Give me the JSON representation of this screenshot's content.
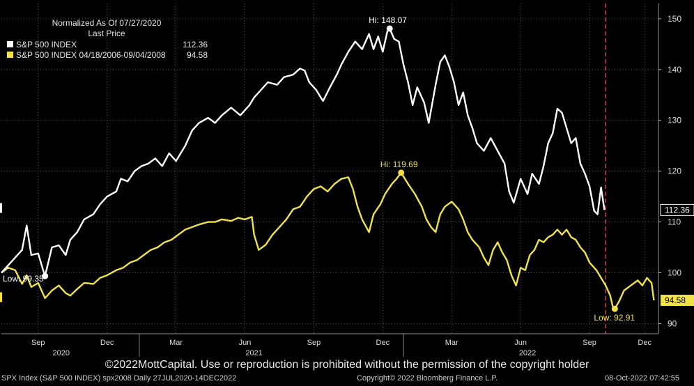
{
  "legend": {
    "header_line1": "Normalized As Of 07/27/2020",
    "header_line2": "Last Price",
    "items": [
      {
        "name": "S&P 500 INDEX",
        "value": "112.36",
        "color": "#ffffff"
      },
      {
        "name": "S&P 500 INDEX 04/18/2006-09/04/2008",
        "value": "94.58",
        "color": "#f2e24a"
      }
    ]
  },
  "copyright": "©2022MottCapital. Use or reproduction is prohibited without the permission of the copyright holder",
  "footer": {
    "left": "SPX Index (S&P 500 INDEX) spx2008  Daily 27JUL2020-14DEC2022",
    "center": "Copyright© 2022 Bloomberg Finance L.P.",
    "right": "08-Oct-2022 07:42:55"
  },
  "chart_data": {
    "type": "line",
    "ylim": [
      88,
      153
    ],
    "yticks": [
      90,
      100,
      110,
      120,
      130,
      140,
      150
    ],
    "xlim": [
      0,
      28.6
    ],
    "month_ticks": [
      {
        "label": "Sep",
        "pos": 1.6
      },
      {
        "label": "Dec",
        "pos": 4.6
      },
      {
        "label": "Mar",
        "pos": 7.6
      },
      {
        "label": "Jun",
        "pos": 10.6
      },
      {
        "label": "Sep",
        "pos": 13.6
      },
      {
        "label": "Dec",
        "pos": 16.6
      },
      {
        "label": "Mar",
        "pos": 19.6
      },
      {
        "label": "Jun",
        "pos": 22.6
      },
      {
        "label": "Sep",
        "pos": 25.6
      },
      {
        "label": "Dec",
        "pos": 28.0
      }
    ],
    "year_labels": [
      {
        "label": "2020",
        "pos": 2.6
      },
      {
        "label": "2021",
        "pos": 11.0
      },
      {
        "label": "2022",
        "pos": 22.9
      }
    ],
    "today_pos": 26.3,
    "series": [
      {
        "name": "S&P 500 INDEX",
        "color": "#ffffff",
        "last_value": "112.36",
        "points": [
          [
            0.0,
            100.0
          ],
          [
            0.5,
            102.5
          ],
          [
            0.9,
            104.5
          ],
          [
            1.1,
            109.3
          ],
          [
            1.3,
            103.5
          ],
          [
            1.6,
            103.8
          ],
          [
            1.8,
            100.8
          ],
          [
            1.9,
            99.35
          ],
          [
            2.2,
            105.0
          ],
          [
            2.5,
            105.4
          ],
          [
            2.8,
            103.5
          ],
          [
            3.0,
            106.5
          ],
          [
            3.3,
            108.0
          ],
          [
            3.6,
            110.5
          ],
          [
            4.0,
            111.5
          ],
          [
            4.3,
            113.5
          ],
          [
            4.6,
            115.0
          ],
          [
            5.0,
            116.0
          ],
          [
            5.2,
            118.5
          ],
          [
            5.5,
            118.0
          ],
          [
            5.8,
            120.0
          ],
          [
            6.1,
            121.0
          ],
          [
            6.4,
            121.5
          ],
          [
            6.7,
            122.5
          ],
          [
            7.0,
            121.0
          ],
          [
            7.3,
            123.5
          ],
          [
            7.6,
            122.0
          ],
          [
            8.0,
            125.0
          ],
          [
            8.3,
            128.0
          ],
          [
            8.6,
            129.5
          ],
          [
            9.0,
            130.5
          ],
          [
            9.3,
            129.5
          ],
          [
            9.6,
            131.0
          ],
          [
            10.0,
            132.5
          ],
          [
            10.4,
            131.0
          ],
          [
            10.8,
            133.0
          ],
          [
            11.0,
            134.5
          ],
          [
            11.3,
            136.0
          ],
          [
            11.6,
            137.5
          ],
          [
            12.0,
            137.0
          ],
          [
            12.3,
            138.5
          ],
          [
            12.7,
            139.0
          ],
          [
            13.0,
            140.2
          ],
          [
            13.2,
            139.8
          ],
          [
            13.4,
            137.5
          ],
          [
            13.7,
            136.0
          ],
          [
            14.0,
            133.8
          ],
          [
            14.3,
            136.5
          ],
          [
            14.6,
            139.0
          ],
          [
            14.8,
            141.0
          ],
          [
            15.1,
            143.5
          ],
          [
            15.4,
            145.5
          ],
          [
            15.7,
            144.0
          ],
          [
            16.0,
            147.0
          ],
          [
            16.2,
            144.0
          ],
          [
            16.4,
            146.5
          ],
          [
            16.6,
            143.5
          ],
          [
            16.8,
            147.5
          ],
          [
            16.9,
            148.07
          ],
          [
            17.1,
            146.0
          ],
          [
            17.3,
            145.5
          ],
          [
            17.5,
            141.0
          ],
          [
            17.7,
            137.5
          ],
          [
            17.9,
            133.0
          ],
          [
            18.1,
            136.5
          ],
          [
            18.4,
            133.5
          ],
          [
            18.6,
            129.5
          ],
          [
            18.9,
            137.0
          ],
          [
            19.1,
            141.5
          ],
          [
            19.3,
            142.8
          ],
          [
            19.5,
            140.5
          ],
          [
            19.7,
            137.5
          ],
          [
            19.9,
            133.0
          ],
          [
            20.1,
            135.5
          ],
          [
            20.3,
            131.0
          ],
          [
            20.5,
            128.5
          ],
          [
            20.7,
            125.5
          ],
          [
            21.0,
            124.0
          ],
          [
            21.3,
            126.5
          ],
          [
            21.6,
            124.0
          ],
          [
            21.9,
            121.5
          ],
          [
            22.1,
            116.0
          ],
          [
            22.3,
            113.8
          ],
          [
            22.6,
            118.5
          ],
          [
            22.9,
            115.5
          ],
          [
            23.1,
            119.5
          ],
          [
            23.4,
            117.5
          ],
          [
            23.6,
            121.0
          ],
          [
            23.8,
            125.5
          ],
          [
            24.0,
            127.5
          ],
          [
            24.2,
            132.3
          ],
          [
            24.4,
            131.5
          ],
          [
            24.6,
            128.5
          ],
          [
            24.8,
            125.5
          ],
          [
            25.0,
            126.5
          ],
          [
            25.2,
            121.5
          ],
          [
            25.4,
            119.5
          ],
          [
            25.6,
            117.0
          ],
          [
            25.8,
            112.2
          ],
          [
            25.95,
            111.5
          ],
          [
            26.1,
            116.8
          ],
          [
            26.25,
            112.36
          ]
        ],
        "high": {
          "label": "Hi: 148.07",
          "x": 16.9,
          "y": 148.07
        },
        "low": {
          "label": "Low: 99.35",
          "x": 1.9,
          "y": 99.35
        }
      },
      {
        "name": "S&P 500 INDEX 04/18/2006-09/04/2008",
        "color": "#f2e24a",
        "last_value": "94.58",
        "points": [
          [
            0.0,
            100.0
          ],
          [
            0.3,
            101.0
          ],
          [
            0.6,
            100.5
          ],
          [
            0.9,
            97.8
          ],
          [
            1.1,
            99.5
          ],
          [
            1.3,
            97.2
          ],
          [
            1.6,
            98.0
          ],
          [
            1.9,
            95.0
          ],
          [
            2.2,
            96.5
          ],
          [
            2.5,
            97.5
          ],
          [
            2.8,
            96.0
          ],
          [
            3.0,
            95.5
          ],
          [
            3.3,
            96.8
          ],
          [
            3.6,
            98.0
          ],
          [
            4.0,
            97.8
          ],
          [
            4.3,
            99.0
          ],
          [
            4.6,
            99.5
          ],
          [
            5.0,
            100.5
          ],
          [
            5.3,
            101.0
          ],
          [
            5.6,
            102.0
          ],
          [
            5.9,
            102.5
          ],
          [
            6.2,
            103.5
          ],
          [
            6.5,
            104.5
          ],
          [
            6.8,
            105.0
          ],
          [
            7.1,
            106.0
          ],
          [
            7.4,
            106.5
          ],
          [
            7.7,
            107.5
          ],
          [
            8.0,
            108.5
          ],
          [
            8.3,
            109.0
          ],
          [
            8.6,
            109.5
          ],
          [
            9.0,
            110.0
          ],
          [
            9.3,
            110.0
          ],
          [
            9.6,
            110.5
          ],
          [
            10.0,
            110.2
          ],
          [
            10.3,
            110.8
          ],
          [
            10.6,
            110.5
          ],
          [
            10.9,
            111.0
          ],
          [
            11.0,
            107.5
          ],
          [
            11.2,
            104.5
          ],
          [
            11.5,
            105.5
          ],
          [
            11.8,
            107.5
          ],
          [
            12.1,
            109.0
          ],
          [
            12.4,
            110.5
          ],
          [
            12.7,
            112.5
          ],
          [
            13.0,
            113.0
          ],
          [
            13.3,
            115.0
          ],
          [
            13.6,
            116.5
          ],
          [
            13.9,
            117.0
          ],
          [
            14.2,
            116.0
          ],
          [
            14.5,
            117.5
          ],
          [
            14.8,
            118.5
          ],
          [
            15.1,
            118.8
          ],
          [
            15.3,
            116.5
          ],
          [
            15.5,
            113.0
          ],
          [
            15.7,
            110.5
          ],
          [
            16.0,
            108.0
          ],
          [
            16.2,
            111.5
          ],
          [
            16.5,
            113.5
          ],
          [
            16.7,
            115.5
          ],
          [
            17.0,
            117.5
          ],
          [
            17.2,
            118.5
          ],
          [
            17.4,
            119.69
          ],
          [
            17.7,
            117.5
          ],
          [
            18.0,
            115.5
          ],
          [
            18.3,
            113.0
          ],
          [
            18.5,
            110.5
          ],
          [
            18.7,
            109.0
          ],
          [
            18.9,
            108.0
          ],
          [
            19.1,
            111.5
          ],
          [
            19.3,
            113.0
          ],
          [
            19.6,
            114.0
          ],
          [
            19.9,
            112.5
          ],
          [
            20.1,
            110.5
          ],
          [
            20.3,
            108.0
          ],
          [
            20.5,
            106.5
          ],
          [
            20.8,
            105.0
          ],
          [
            21.0,
            103.0
          ],
          [
            21.2,
            101.5
          ],
          [
            21.4,
            104.5
          ],
          [
            21.6,
            106.0
          ],
          [
            21.8,
            104.0
          ],
          [
            22.0,
            102.5
          ],
          [
            22.2,
            99.5
          ],
          [
            22.4,
            97.5
          ],
          [
            22.6,
            101.0
          ],
          [
            22.8,
            100.5
          ],
          [
            23.0,
            103.5
          ],
          [
            23.2,
            104.5
          ],
          [
            23.4,
            106.5
          ],
          [
            23.6,
            106.0
          ],
          [
            23.8,
            107.0
          ],
          [
            24.0,
            107.5
          ],
          [
            24.2,
            108.5
          ],
          [
            24.4,
            107.5
          ],
          [
            24.6,
            108.5
          ],
          [
            24.8,
            107.0
          ],
          [
            25.0,
            106.5
          ],
          [
            25.2,
            105.0
          ],
          [
            25.4,
            104.0
          ],
          [
            25.6,
            102.0
          ],
          [
            25.9,
            100.5
          ],
          [
            26.1,
            99.0
          ],
          [
            26.3,
            97.5
          ],
          [
            26.5,
            95.5
          ],
          [
            26.6,
            93.5
          ],
          [
            26.7,
            92.91
          ],
          [
            26.9,
            94.5
          ],
          [
            27.1,
            96.5
          ],
          [
            27.4,
            97.5
          ],
          [
            27.7,
            98.5
          ],
          [
            27.9,
            97.5
          ],
          [
            28.1,
            99.0
          ],
          [
            28.3,
            98.0
          ],
          [
            28.4,
            94.58
          ]
        ],
        "high": {
          "label": "Hi: 119.69",
          "x": 17.4,
          "y": 119.69
        },
        "low": {
          "label": "Low: 92.91",
          "x": 26.7,
          "y": 92.91
        }
      }
    ]
  }
}
